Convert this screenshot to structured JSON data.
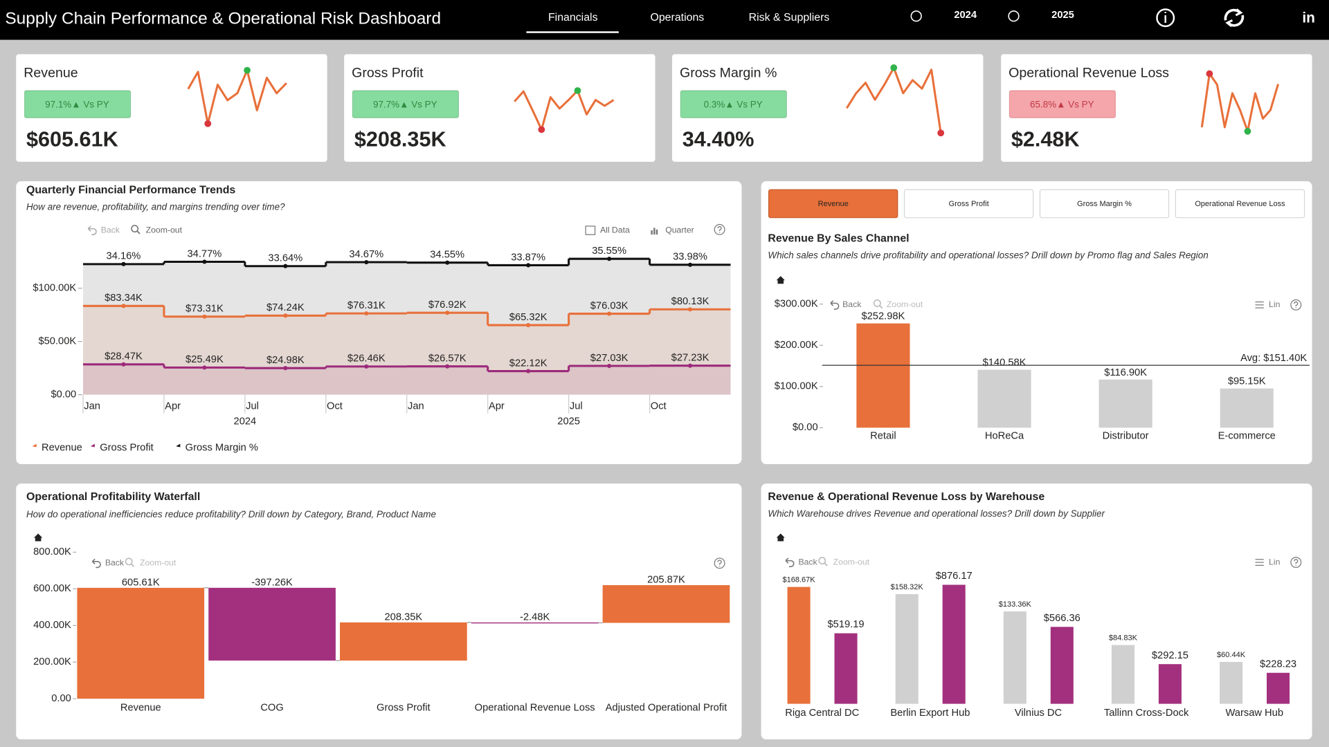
{
  "header": {
    "title": "Supply Chain Performance & Operational Risk Dashboard",
    "tabs": [
      "Financials",
      "Operations",
      "Risk & Suppliers"
    ],
    "years": [
      "2024",
      "2025"
    ],
    "linkedin": "in"
  },
  "kpis": [
    {
      "label": "Revenue",
      "badge": "97.1%▲ Vs PY",
      "badge_color": "#86dc9f",
      "badge_text_color": "#2d8a40",
      "value": "$605.61K",
      "sparkline_color": "#e8703a",
      "max_marker_color": "#2fb34a",
      "min_marker_color": "#d9363e",
      "sparkline": [
        65,
        97,
        0,
        73,
        44,
        57,
        100,
        25,
        86,
        57,
        76
      ]
    },
    {
      "label": "Gross Profit",
      "badge": "97.7%▲ Vs PY",
      "badge_color": "#86dc9f",
      "badge_text_color": "#2d8a40",
      "value": "$208.35K",
      "sparkline_color": "#e8703a",
      "max_marker_color": "#2fb34a",
      "min_marker_color": "#d9363e",
      "sparkline": [
        72,
        98,
        50,
        0,
        83,
        54,
        76,
        100,
        39,
        76,
        61,
        76
      ]
    },
    {
      "label": "Gross Margin %",
      "badge": "0.3%▲ Vs PY",
      "badge_color": "#86dc9f",
      "badge_text_color": "#2d8a40",
      "value": "34.40%",
      "sparkline_color": "#e8703a",
      "max_marker_color": "#2fb34a",
      "min_marker_color": "#d9363e",
      "sparkline": [
        38,
        61,
        77,
        51,
        74,
        100,
        61,
        81,
        68,
        97,
        0
      ]
    },
    {
      "label": "Operational Revenue Loss",
      "badge": "65.8%▲ Vs PY",
      "badge_color": "#f4a6ab",
      "badge_text_color": "#c23a45",
      "value": "$2.48K",
      "sparkline_color": "#e8703a",
      "max_marker_color": "#d9363e",
      "min_marker_color": "#2fb34a",
      "sparkline": [
        7,
        100,
        81,
        7,
        66,
        37,
        0,
        66,
        22,
        37,
        82
      ]
    }
  ],
  "chart_data": [
    {
      "type": "line",
      "title": "Quarterly Financial Performance Trends",
      "subtitle": "How are revenue, profitability, and margins trending over time?",
      "toolbar": [
        "Back",
        "Zoom-out",
        "All Data",
        "Quarter"
      ],
      "categories": [
        "Jan",
        "Apr",
        "Jul",
        "Oct",
        "Jan",
        "Apr",
        "Jul",
        "Oct"
      ],
      "years": [
        "2024",
        "2025"
      ],
      "series": [
        {
          "name": "Revenue",
          "color": "#e8703a",
          "values": [
            83340,
            73310,
            74240,
            76310,
            76920,
            65320,
            76030,
            80130
          ],
          "value_labels": [
            "$83.34K",
            "$73.31K",
            "$74.24K",
            "$76.31K",
            "$76.92K",
            "$65.32K",
            "$76.03K",
            "$80.13K"
          ]
        },
        {
          "name": "Gross Profit",
          "color": "#9c2a7a",
          "values": [
            28470,
            25490,
            24980,
            26460,
            26570,
            22120,
            27030,
            27230
          ],
          "value_labels": [
            "$28.47K",
            "$25.49K",
            "$24.98K",
            "$26.46K",
            "$26.57K",
            "$22.12K",
            "$27.03K",
            "$27.23K"
          ]
        },
        {
          "name": "Gross Margin %",
          "color": "#111111",
          "axis": "y2",
          "values": [
            34.16,
            34.77,
            33.64,
            34.67,
            34.55,
            33.87,
            35.55,
            33.98
          ],
          "value_labels": [
            "34.16%",
            "34.77%",
            "33.64%",
            "34.67%",
            "34.55%",
            "33.87%",
            "35.55%",
            "33.98%"
          ]
        }
      ],
      "ylim": [
        0,
        140000
      ],
      "yticks": [
        {
          "value": 0,
          "label": "$0.00"
        },
        {
          "value": 50000,
          "label": "$50.00K"
        },
        {
          "value": 100000,
          "label": "$100.00K"
        }
      ],
      "y2lim": [
        0,
        39
      ]
    },
    {
      "type": "bar",
      "tabs": [
        "Revenue",
        "Gross Profit",
        "Gross Margin %",
        "Operational Revenue Loss"
      ],
      "title": "Revenue By Sales Channel",
      "subtitle": "Which sales channels drive profitability and operational losses? Drill down by Promo flag and Sales Region",
      "toolbar": [
        "Back",
        "Zoom-out",
        "Lin"
      ],
      "categories": [
        "Retail",
        "HoReCa",
        "Distributor",
        "E-commerce"
      ],
      "values": [
        252980,
        140580,
        116900,
        95150
      ],
      "value_labels": [
        "$252.98K",
        "$140.58K",
        "$116.90K",
        "$95.15K"
      ],
      "colors": [
        "#e8703a",
        "#d0d0d0",
        "#d0d0d0",
        "#d0d0d0"
      ],
      "avg": 151400,
      "avg_label": "Avg: $151.40K",
      "ylim": [
        0,
        300000
      ],
      "yticks": [
        {
          "value": 0,
          "label": "$0.00"
        },
        {
          "value": 100000,
          "label": "$100.00K"
        },
        {
          "value": 200000,
          "label": "$200.00K"
        },
        {
          "value": 300000,
          "label": "$300.00K"
        }
      ]
    },
    {
      "type": "waterfall",
      "title": "Operational Profitability Waterfall",
      "subtitle": "How do operational inefficiencies reduce profitability? Drill down by Category, Brand, Product Name",
      "toolbar": [
        "Back",
        "Zoom-out"
      ],
      "categories": [
        "Revenue",
        "COG",
        "Gross Profit",
        "Operational Revenue Loss",
        "Adjusted Operational Profit"
      ],
      "values": [
        605610,
        -397260,
        208350,
        -2480,
        205870
      ],
      "value_labels": [
        "605.61K",
        "-397.26K",
        "208.35K",
        "-2.48K",
        "205.87K"
      ],
      "increase_color": "#e8703a",
      "decrease_color": "#a3307e",
      "ylim": [
        0,
        800000
      ],
      "yticks": [
        {
          "value": 0,
          "label": "0.00"
        },
        {
          "value": 200000,
          "label": "200.00K"
        },
        {
          "value": 400000,
          "label": "400.00K"
        },
        {
          "value": 600000,
          "label": "600.00K"
        },
        {
          "value": 800000,
          "label": "800.00K"
        }
      ]
    },
    {
      "type": "grouped_bar",
      "title": "Revenue & Operational Revenue Loss by Warehouse",
      "subtitle": "Which Warehouse drives Revenue and operational losses? Drill down by Supplier",
      "toolbar": [
        "Back",
        "Zoom-out",
        "Lin"
      ],
      "categories": [
        "Riga Central DC",
        "Berlin Export Hub",
        "Vilnius DC",
        "Tallinn Cross-Dock",
        "Warsaw Hub"
      ],
      "series": [
        {
          "colors": [
            "#e8703a",
            "#d0d0d0",
            "#d0d0d0",
            "#d0d0d0",
            "#d0d0d0"
          ],
          "values": [
            168670,
            158320,
            133360,
            84830,
            60440
          ],
          "value_labels": [
            "$168.67K",
            "$158.32K",
            "$133.36K",
            "$84.83K",
            "$60.44K"
          ]
        },
        {
          "color": "#a3307e",
          "axis": "y2",
          "values": [
            519.19,
            876.17,
            566.36,
            292.15,
            228.23
          ],
          "value_labels": [
            "$519.19",
            "$876.17",
            "$566.36",
            "$292.15",
            "$228.23"
          ]
        }
      ],
      "ylim": [
        0,
        200000
      ],
      "y2lim": [
        0,
        1020
      ]
    }
  ]
}
